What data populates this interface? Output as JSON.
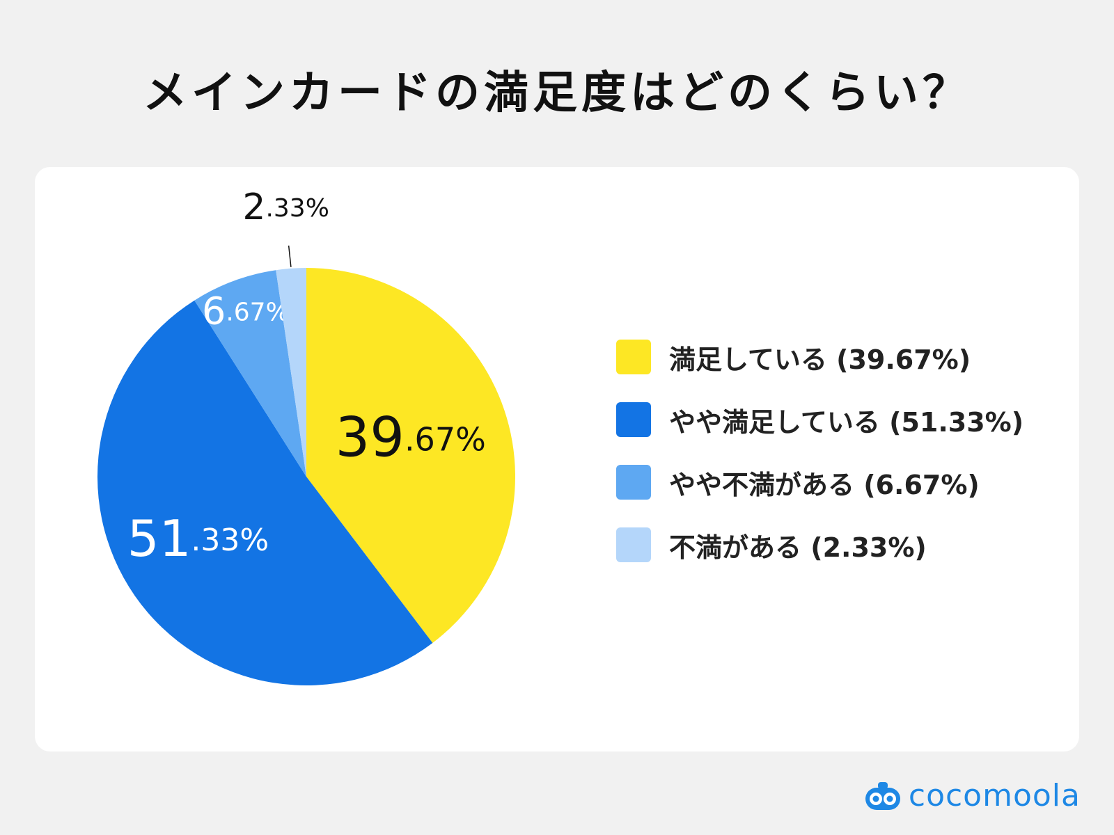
{
  "title": "メインカードの満足度はどのくらい？",
  "logo_text": "cocomoola",
  "chart_data": {
    "type": "pie",
    "title": "メインカードの満足度はどのくらい？",
    "slices": [
      {
        "label": "満足している",
        "value": 39.67,
        "value_label": "39.67%",
        "legend_text": "満足している (39.67%)",
        "color": "#fde724"
      },
      {
        "label": "やや満足している",
        "value": 51.33,
        "value_label": "51.33%",
        "legend_text": "やや満足している (51.33%)",
        "color": "#1374e4"
      },
      {
        "label": "やや不満がある",
        "value": 6.67,
        "value_label": "6.67%",
        "legend_text": "やや不満がある (6.67%)",
        "color": "#5ea8f2"
      },
      {
        "label": "不満がある",
        "value": 2.33,
        "value_label": "2.33%",
        "legend_text": "不満がある (2.33%)",
        "color": "#b4d6fa"
      }
    ],
    "start": "12 o'clock",
    "direction": "clockwise",
    "legend_position": "right"
  }
}
